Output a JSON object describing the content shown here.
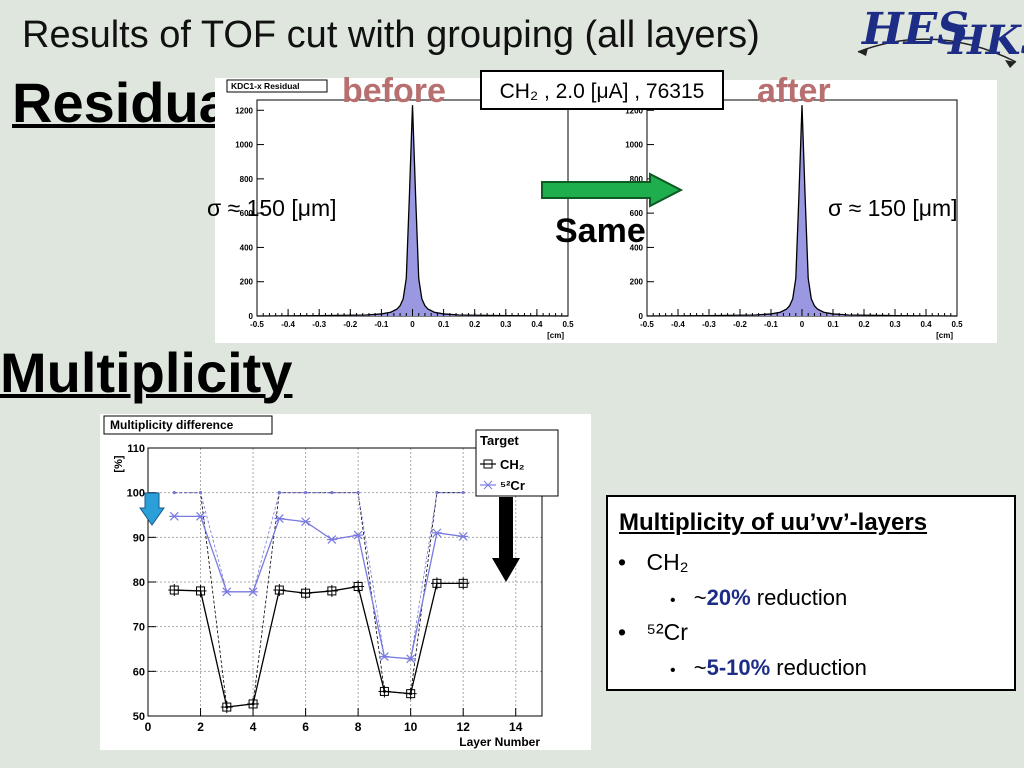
{
  "slide": {
    "title": "Results of TOF cut with grouping (all layers)",
    "residual_heading": "Residual",
    "multiplicity_heading": "Multiplicity",
    "before_label": "before",
    "after_label": "after",
    "condition_label": "CH₂ , 2.0 [μA] , 76315",
    "sigma_before": "σ ≈ 150 [μm]",
    "sigma_after": "σ ≈ 150 [μm]",
    "same_label": "Same",
    "logo_text_1": "HES",
    "logo_text_2": "HKS",
    "colors": {
      "background": "#dfe6de",
      "accent": "#b86f6f",
      "arrow": "#1fae4e",
      "highlight": "#1d2d86"
    }
  },
  "summary": {
    "title": "Multiplicity of uu’vv’-layers",
    "items": [
      {
        "label": "CH₂",
        "sub_prefix": "~",
        "sub_value": "20%",
        "sub_suffix": " reduction"
      },
      {
        "label": "⁵²Cr",
        "sub_prefix": "~",
        "sub_value": "5-10%",
        "sub_suffix": " reduction"
      }
    ]
  },
  "chart_data": [
    {
      "type": "bar",
      "title": "KDC1-x Residual",
      "xlabel": "[cm]",
      "ylabel": "",
      "xlim": [
        -0.5,
        0.5
      ],
      "ylim": [
        0,
        1260
      ],
      "xticks": [
        -0.5,
        -0.4,
        -0.3,
        -0.2,
        -0.1,
        0,
        0.1,
        0.2,
        0.3,
        0.4,
        0.5
      ],
      "xtick_labels": [
        "-0.5",
        "-0.4",
        "-0.3",
        "-0.2",
        "-0.1",
        "0",
        "0.1",
        "0.2",
        "0.3",
        "0.4",
        "0.5"
      ],
      "yticks": [
        0,
        200,
        400,
        600,
        800,
        1000,
        1200
      ],
      "series": [
        {
          "x": [
            -0.5,
            -0.3,
            -0.15,
            -0.1,
            -0.07,
            -0.05,
            -0.04,
            -0.03,
            -0.02,
            -0.01,
            0,
            0.01,
            0.02,
            0.03,
            0.04,
            0.05,
            0.07,
            0.1,
            0.15,
            0.3,
            0.5
          ],
          "values": [
            0,
            2,
            6,
            12,
            22,
            40,
            60,
            100,
            220,
            700,
            1230,
            700,
            220,
            100,
            60,
            40,
            22,
            12,
            6,
            2,
            0
          ]
        }
      ],
      "fill": "#9a98e0"
    },
    {
      "type": "bar",
      "title": "",
      "xlabel": "[cm]",
      "ylabel": "",
      "xlim": [
        -0.5,
        0.5
      ],
      "ylim": [
        0,
        1260
      ],
      "xticks": [
        -0.5,
        -0.4,
        -0.3,
        -0.2,
        -0.1,
        0,
        0.1,
        0.2,
        0.3,
        0.4,
        0.5
      ],
      "xtick_labels": [
        "-0.5",
        "-0.4",
        "-0.3",
        "-0.2",
        "-0.1",
        "0",
        "0.1",
        "0.2",
        "0.3",
        "0.4",
        "0.5"
      ],
      "yticks": [
        0,
        200,
        400,
        600,
        800,
        1000,
        1200
      ],
      "series": [
        {
          "x": [
            -0.5,
            -0.3,
            -0.15,
            -0.1,
            -0.07,
            -0.05,
            -0.04,
            -0.03,
            -0.02,
            -0.01,
            0,
            0.01,
            0.02,
            0.03,
            0.04,
            0.05,
            0.07,
            0.1,
            0.15,
            0.3,
            0.5
          ],
          "values": [
            0,
            2,
            6,
            12,
            22,
            40,
            60,
            100,
            220,
            700,
            1230,
            700,
            220,
            100,
            60,
            40,
            22,
            12,
            6,
            2,
            0
          ]
        }
      ],
      "fill": "#9a98e0"
    },
    {
      "type": "line",
      "title": "Multiplicity difference",
      "xlabel": "Layer Number",
      "ylabel": "[%]",
      "xlim": [
        0,
        15
      ],
      "ylim": [
        50,
        110
      ],
      "xticks": [
        0,
        2,
        4,
        6,
        8,
        10,
        12,
        14
      ],
      "yticks": [
        50,
        60,
        70,
        80,
        90,
        100,
        110
      ],
      "grid": true,
      "legend": {
        "title": "Target",
        "position": "top-right"
      },
      "series": [
        {
          "name": "CH₂",
          "color": "#000000",
          "marker": "square-cross",
          "x": [
            1,
            2,
            3,
            4,
            5,
            6,
            7,
            8,
            9,
            10,
            11,
            12
          ],
          "values": [
            78.2,
            78.0,
            52.0,
            52.7,
            78.2,
            77.5,
            78.0,
            79.0,
            55.5,
            55.0,
            79.7,
            79.7
          ],
          "reference": [
            100,
            100,
            52,
            52.7,
            100,
            100,
            100,
            100,
            55.5,
            55,
            100,
            100
          ]
        },
        {
          "name": "⁵²Cr",
          "color": "#7a7ae0",
          "marker": "star",
          "x": [
            1,
            2,
            3,
            4,
            5,
            6,
            7,
            8,
            9,
            10,
            11,
            12
          ],
          "values": [
            94.7,
            94.7,
            77.8,
            77.8,
            94.2,
            93.5,
            89.5,
            90.5,
            63.3,
            62.8,
            91.0,
            90.2
          ],
          "reference": [
            100,
            100,
            77.8,
            77.8,
            100,
            100,
            100,
            100,
            63.3,
            62.8,
            100,
            100
          ]
        }
      ]
    }
  ]
}
